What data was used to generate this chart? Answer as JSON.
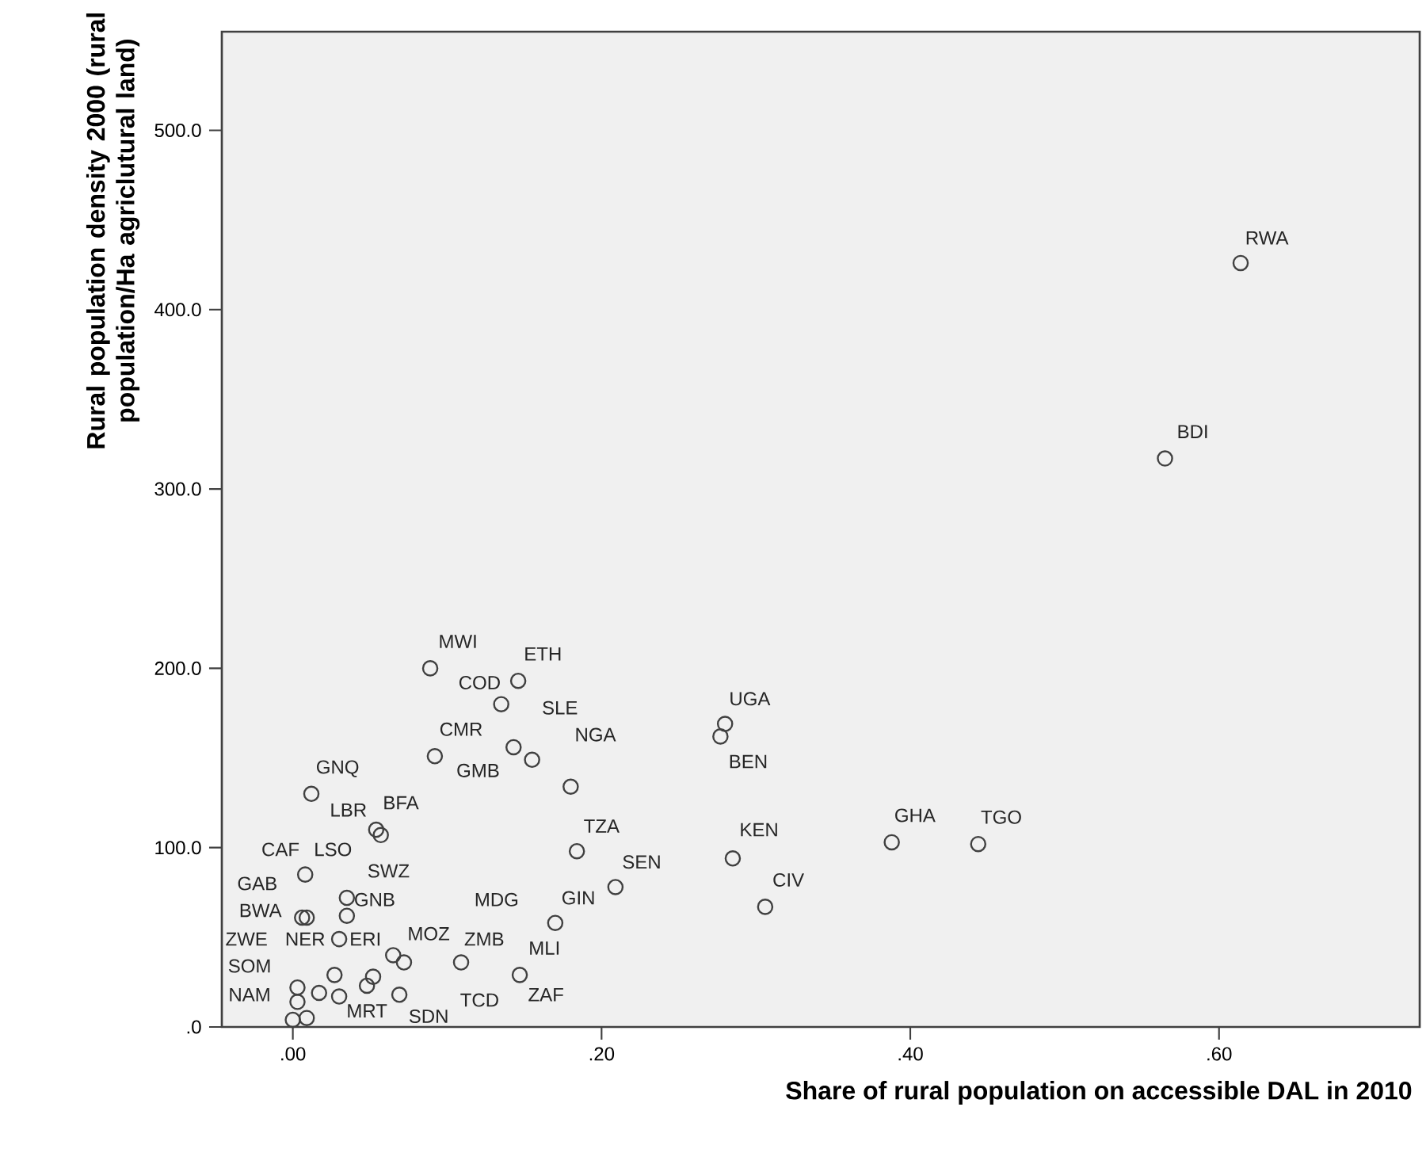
{
  "chart_data": {
    "type": "scatter",
    "xlabel": "Share of rural population on accessible DAL in 2010",
    "ylabel": "Rural population density 2000 (rural population/Ha agriclutural land)",
    "xlim": [
      -0.046,
      0.73
    ],
    "ylim": [
      0,
      555
    ],
    "xticks": [
      {
        "value": 0,
        "label": ".00"
      },
      {
        "value": 0.2,
        "label": ".20"
      },
      {
        "value": 0.4,
        "label": ".40"
      },
      {
        "value": 0.6,
        "label": ".60"
      }
    ],
    "yticks": [
      {
        "value": 0,
        "label": ".0"
      },
      {
        "value": 100,
        "label": "100.0"
      },
      {
        "value": 200,
        "label": "200.0"
      },
      {
        "value": 300,
        "label": "300.0"
      },
      {
        "value": 400,
        "label": "400.0"
      },
      {
        "value": 500,
        "label": "500.0"
      }
    ],
    "marker": "circle",
    "grid": false,
    "series": [
      {
        "color": "#404040",
        "x": [
          0.614,
          0.565,
          0.089,
          0.146,
          0.135,
          0.092,
          0.143,
          0.155,
          0.18,
          0.184,
          0.209,
          0.17,
          0.28,
          0.277,
          0.285,
          0.306,
          0.388,
          0.444,
          0.012,
          0.054,
          0.057,
          0.008,
          0.035,
          0.035,
          0.006,
          0.009,
          0.03,
          0.065,
          0.072,
          0.109,
          0.147,
          0.027,
          0.052,
          0.048,
          0.017,
          0.03,
          0.069,
          0.003,
          0.003,
          0.0,
          0.009
        ],
        "values": [
          426,
          317,
          200,
          193,
          180,
          151,
          156,
          149,
          134,
          98,
          78,
          58,
          169,
          162,
          94,
          67,
          103,
          102,
          130,
          110,
          107,
          85,
          72,
          62,
          61,
          61,
          49,
          40,
          36,
          36,
          29,
          29,
          28,
          23,
          19,
          17,
          18,
          22,
          14,
          4,
          5
        ]
      }
    ],
    "annotations": [
      "RWA",
      "BDI",
      "MWI",
      "ETH",
      "COD",
      "SLE",
      "CMR",
      "GMB",
      "NGA",
      "UGA",
      "BEN",
      "TZA",
      "SEN",
      "GIN",
      "KEN",
      "CIV",
      "GHA",
      "TGO",
      "GNQ",
      "LBR",
      "BFA",
      "CAF",
      "LSO",
      "SWZ",
      "GAB",
      "GNB",
      "MDG",
      "BWA",
      "ZWE",
      "NER",
      "ERI",
      "MOZ",
      "ZMB",
      "MLI",
      "SOM",
      "NAM",
      "MRT",
      "SDN",
      "TCD",
      "ZAF"
    ]
  }
}
